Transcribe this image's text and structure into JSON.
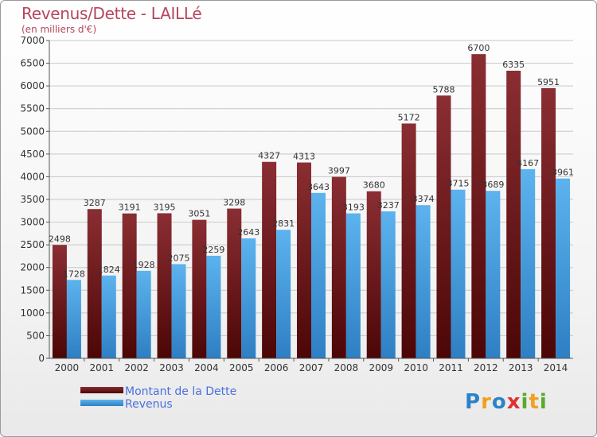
{
  "title": "Revenus/Dette - LAILLé",
  "subtitle": "(en milliers d'€)",
  "colors": {
    "dette_top": "#8a2e33",
    "dette_bottom": "#4c0606",
    "revenus_top": "#5cb3ee",
    "revenus_bottom": "#2e7fc3",
    "title": "#b5465c"
  },
  "legend": {
    "dette": "Montant de la Dette",
    "revenus": "Revenus"
  },
  "logo": {
    "text": "Proxiti",
    "letters": [
      "P",
      "r",
      "o",
      "x",
      "i",
      "t",
      "i"
    ]
  },
  "chart_data": {
    "type": "bar",
    "categories": [
      "2000",
      "2001",
      "2002",
      "2003",
      "2004",
      "2005",
      "2006",
      "2007",
      "2008",
      "2009",
      "2010",
      "2011",
      "2012",
      "2013",
      "2014"
    ],
    "series": [
      {
        "name": "Montant de la Dette",
        "values": [
          2498,
          3287,
          3191,
          3195,
          3051,
          3298,
          4327,
          4313,
          3997,
          3680,
          5172,
          5788,
          6700,
          6335,
          5951
        ]
      },
      {
        "name": "Revenus",
        "values": [
          1728,
          1824,
          1928,
          2075,
          2259,
          2643,
          2831,
          3643,
          3193,
          3237,
          3374,
          3715,
          3689,
          4167,
          3961
        ]
      }
    ],
    "ylim": [
      0,
      7000
    ],
    "yticks": [
      0,
      500,
      1000,
      1500,
      2000,
      2500,
      3000,
      3500,
      4000,
      4500,
      5000,
      5500,
      6000,
      6500,
      7000
    ],
    "grid": true,
    "legend_position": "bottom-left"
  }
}
